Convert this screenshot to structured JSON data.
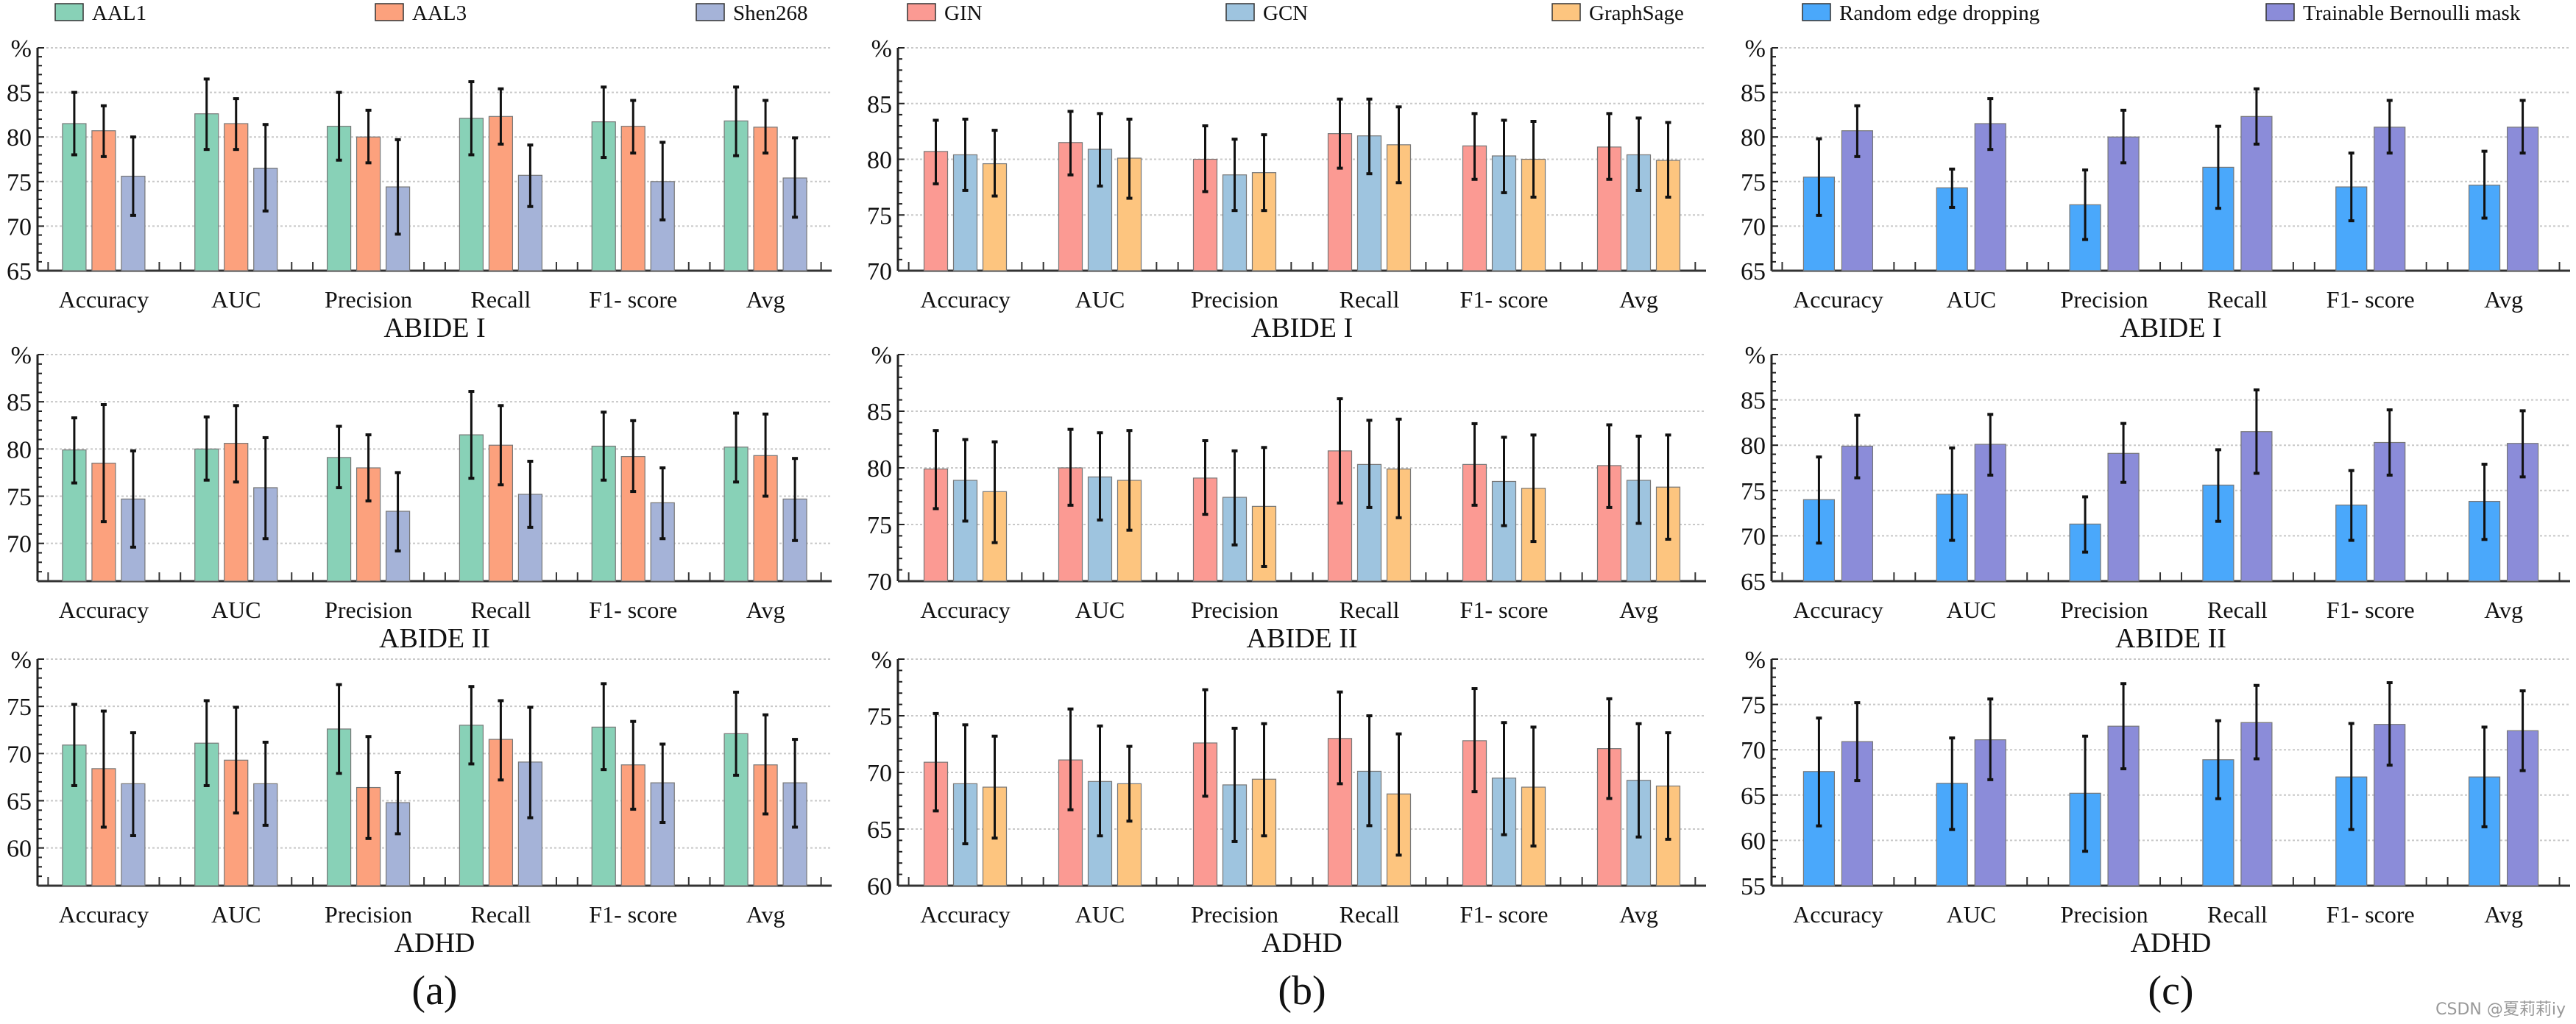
{
  "legends": [
    {
      "items": [
        {
          "name": "AAL1",
          "color": "#88d1b7"
        },
        {
          "name": "AAL3",
          "color": "#fca17d"
        },
        {
          "name": "Shen268",
          "color": "#a5b3d8"
        }
      ]
    },
    {
      "items": [
        {
          "name": "GIN",
          "color": "#fb9a93"
        },
        {
          "name": "GCN",
          "color": "#9ec4df"
        },
        {
          "name": "GraphSage",
          "color": "#fdc57f"
        }
      ]
    },
    {
      "items": [
        {
          "name": "Random edge dropping",
          "color": "#4aa8fb"
        },
        {
          "name": "Trainable Bernoulli mask",
          "color": "#8b8cd9"
        }
      ]
    }
  ],
  "panel_labels": [
    "(a)",
    "(b)",
    "(c)"
  ],
  "watermark": "CSDN @夏莉莉iy",
  "chart_data": [
    {
      "type": "bar",
      "panel": "(a)",
      "title": "ABIDE I",
      "ylabel": "%",
      "ylim": [
        65,
        90
      ],
      "grid": true,
      "categories": [
        "Accuracy",
        "AUC",
        "Precision",
        "Recall",
        "F1- score",
        "Avg"
      ],
      "series": [
        {
          "name": "AAL1",
          "values": [
            81.5,
            82.6,
            81.2,
            82.1,
            81.7,
            81.8
          ],
          "ci": [
            [
              78.0,
              85.0
            ],
            [
              78.6,
              86.5
            ],
            [
              77.4,
              85.0
            ],
            [
              78.0,
              86.2
            ],
            [
              77.7,
              85.6
            ],
            [
              77.9,
              85.6
            ]
          ]
        },
        {
          "name": "AAL3",
          "values": [
            80.7,
            81.5,
            80.0,
            82.3,
            81.2,
            81.1
          ],
          "ci": [
            [
              77.8,
              83.5
            ],
            [
              78.6,
              84.3
            ],
            [
              77.1,
              83.0
            ],
            [
              79.2,
              85.4
            ],
            [
              78.2,
              84.1
            ],
            [
              78.2,
              84.1
            ]
          ]
        },
        {
          "name": "Shen268",
          "values": [
            75.6,
            76.5,
            74.4,
            75.7,
            75.0,
            75.4
          ],
          "ci": [
            [
              71.2,
              80.0
            ],
            [
              71.7,
              81.4
            ],
            [
              69.1,
              79.7
            ],
            [
              72.2,
              79.1
            ],
            [
              70.7,
              79.4
            ],
            [
              71.0,
              79.9
            ]
          ]
        }
      ]
    },
    {
      "type": "bar",
      "panel": "(b)",
      "title": "ABIDE I",
      "ylabel": "%",
      "ylim": [
        70,
        90
      ],
      "grid": true,
      "categories": [
        "Accuracy",
        "AUC",
        "Precision",
        "Recall",
        "F1- score",
        "Avg"
      ],
      "series": [
        {
          "name": "GIN",
          "values": [
            80.7,
            81.5,
            80.0,
            82.3,
            81.2,
            81.1
          ],
          "ci": [
            [
              77.8,
              83.5
            ],
            [
              78.6,
              84.3
            ],
            [
              77.1,
              83.0
            ],
            [
              79.2,
              85.4
            ],
            [
              78.2,
              84.1
            ],
            [
              78.2,
              84.1
            ]
          ]
        },
        {
          "name": "GCN",
          "values": [
            80.4,
            80.9,
            78.6,
            82.1,
            80.3,
            80.4
          ],
          "ci": [
            [
              77.2,
              83.6
            ],
            [
              77.6,
              84.1
            ],
            [
              75.4,
              81.8
            ],
            [
              78.7,
              85.4
            ],
            [
              77.0,
              83.5
            ],
            [
              77.2,
              83.7
            ]
          ]
        },
        {
          "name": "GraphSage",
          "values": [
            79.6,
            80.1,
            78.8,
            81.3,
            80.0,
            79.9
          ],
          "ci": [
            [
              76.7,
              82.6
            ],
            [
              76.5,
              83.6
            ],
            [
              75.4,
              82.2
            ],
            [
              77.9,
              84.7
            ],
            [
              76.6,
              83.4
            ],
            [
              76.6,
              83.3
            ]
          ]
        }
      ]
    },
    {
      "type": "bar",
      "panel": "(c)",
      "title": "ABIDE I",
      "ylabel": "%",
      "ylim": [
        65,
        90
      ],
      "grid": true,
      "categories": [
        "Accuracy",
        "AUC",
        "Precision",
        "Recall",
        "F1- score",
        "Avg"
      ],
      "series": [
        {
          "name": "Random edge dropping",
          "values": [
            75.5,
            74.3,
            72.4,
            76.6,
            74.4,
            74.6
          ],
          "ci": [
            [
              71.2,
              79.8
            ],
            [
              72.1,
              76.4
            ],
            [
              68.5,
              76.3
            ],
            [
              72.0,
              81.2
            ],
            [
              70.6,
              78.2
            ],
            [
              70.9,
              78.4
            ]
          ]
        },
        {
          "name": "Trainable Bernoulli mask",
          "values": [
            80.7,
            81.5,
            80.0,
            82.3,
            81.1,
            81.1
          ],
          "ci": [
            [
              77.8,
              83.5
            ],
            [
              78.6,
              84.3
            ],
            [
              77.1,
              83.0
            ],
            [
              79.2,
              85.4
            ],
            [
              78.2,
              84.1
            ],
            [
              78.2,
              84.1
            ]
          ]
        }
      ]
    },
    {
      "type": "bar",
      "panel": "(a)",
      "title": "ABIDE II",
      "ylabel": "%",
      "ylim": [
        66,
        90
      ],
      "grid": true,
      "categories": [
        "Accuracy",
        "AUC",
        "Precision",
        "Recall",
        "F1- score",
        "Avg"
      ],
      "series": [
        {
          "name": "AAL1",
          "values": [
            79.9,
            80.0,
            79.1,
            81.5,
            80.3,
            80.2
          ],
          "ci": [
            [
              76.4,
              83.3
            ],
            [
              76.7,
              83.4
            ],
            [
              75.9,
              82.4
            ],
            [
              76.9,
              86.1
            ],
            [
              76.7,
              83.9
            ],
            [
              76.5,
              83.8
            ]
          ]
        },
        {
          "name": "AAL3",
          "values": [
            78.5,
            80.6,
            78.0,
            80.4,
            79.2,
            79.3
          ],
          "ci": [
            [
              72.3,
              84.7
            ],
            [
              76.5,
              84.6
            ],
            [
              74.5,
              81.5
            ],
            [
              76.2,
              84.6
            ],
            [
              75.5,
              83.0
            ],
            [
              75.0,
              83.7
            ]
          ]
        },
        {
          "name": "Shen268",
          "values": [
            74.7,
            75.9,
            73.4,
            75.2,
            74.3,
            74.7
          ],
          "ci": [
            [
              69.6,
              79.8
            ],
            [
              70.5,
              81.2
            ],
            [
              69.2,
              77.5
            ],
            [
              71.7,
              78.7
            ],
            [
              70.5,
              78.0
            ],
            [
              70.3,
              79.0
            ]
          ]
        }
      ]
    },
    {
      "type": "bar",
      "panel": "(b)",
      "title": "ABIDE II",
      "ylabel": "%",
      "ylim": [
        70,
        90
      ],
      "grid": true,
      "categories": [
        "Accuracy",
        "AUC",
        "Precision",
        "Recall",
        "F1- score",
        "Avg"
      ],
      "series": [
        {
          "name": "GIN",
          "values": [
            79.9,
            80.0,
            79.1,
            81.5,
            80.3,
            80.2
          ],
          "ci": [
            [
              76.4,
              83.3
            ],
            [
              76.7,
              83.4
            ],
            [
              75.9,
              82.4
            ],
            [
              76.9,
              86.1
            ],
            [
              76.7,
              83.9
            ],
            [
              76.5,
              83.8
            ]
          ]
        },
        {
          "name": "GCN",
          "values": [
            78.9,
            79.2,
            77.4,
            80.3,
            78.8,
            78.9
          ],
          "ci": [
            [
              75.3,
              82.5
            ],
            [
              75.4,
              83.1
            ],
            [
              73.2,
              81.5
            ],
            [
              76.5,
              84.2
            ],
            [
              74.9,
              82.7
            ],
            [
              75.1,
              82.8
            ]
          ]
        },
        {
          "name": "GraphSage",
          "values": [
            77.9,
            78.9,
            76.6,
            79.9,
            78.2,
            78.3
          ],
          "ci": [
            [
              73.4,
              82.3
            ],
            [
              74.5,
              83.3
            ],
            [
              71.3,
              81.8
            ],
            [
              75.6,
              84.3
            ],
            [
              73.5,
              82.9
            ],
            [
              73.7,
              82.9
            ]
          ]
        }
      ]
    },
    {
      "type": "bar",
      "panel": "(c)",
      "title": "ABIDE II",
      "ylabel": "%",
      "ylim": [
        65,
        90
      ],
      "grid": true,
      "categories": [
        "Accuracy",
        "AUC",
        "Precision",
        "Recall",
        "F1- score",
        "Avg"
      ],
      "series": [
        {
          "name": "Random edge dropping",
          "values": [
            74.0,
            74.6,
            71.3,
            75.6,
            73.4,
            73.8
          ],
          "ci": [
            [
              69.2,
              78.7
            ],
            [
              69.5,
              79.7
            ],
            [
              68.2,
              74.3
            ],
            [
              71.6,
              79.5
            ],
            [
              69.5,
              77.2
            ],
            [
              69.6,
              77.9
            ]
          ]
        },
        {
          "name": "Trainable Bernoulli mask",
          "values": [
            79.9,
            80.1,
            79.1,
            81.5,
            80.3,
            80.2
          ],
          "ci": [
            [
              76.4,
              83.3
            ],
            [
              76.7,
              83.4
            ],
            [
              75.9,
              82.4
            ],
            [
              76.9,
              86.1
            ],
            [
              76.7,
              83.9
            ],
            [
              76.5,
              83.8
            ]
          ]
        }
      ]
    },
    {
      "type": "bar",
      "panel": "(a)",
      "title": "ADHD",
      "ylabel": "%",
      "ylim": [
        56,
        80
      ],
      "grid": true,
      "categories": [
        "Accuracy",
        "AUC",
        "Precision",
        "Recall",
        "F1- score",
        "Avg"
      ],
      "series": [
        {
          "name": "AAL1",
          "values": [
            70.9,
            71.1,
            72.6,
            73.0,
            72.8,
            72.1
          ],
          "ci": [
            [
              66.6,
              75.2
            ],
            [
              66.6,
              75.6
            ],
            [
              67.9,
              77.3
            ],
            [
              68.9,
              77.1
            ],
            [
              68.3,
              77.4
            ],
            [
              67.7,
              76.5
            ]
          ]
        },
        {
          "name": "AAL3",
          "values": [
            68.4,
            69.3,
            66.4,
            71.5,
            68.8,
            68.8
          ],
          "ci": [
            [
              62.2,
              74.5
            ],
            [
              63.7,
              74.9
            ],
            [
              61.0,
              71.8
            ],
            [
              67.2,
              75.6
            ],
            [
              64.1,
              73.4
            ],
            [
              63.6,
              74.1
            ]
          ]
        },
        {
          "name": "Shen268",
          "values": [
            66.8,
            66.8,
            64.8,
            69.1,
            66.9,
            66.9
          ],
          "ci": [
            [
              61.3,
              72.2
            ],
            [
              62.4,
              71.2
            ],
            [
              61.5,
              68.0
            ],
            [
              63.2,
              74.9
            ],
            [
              62.7,
              71.0
            ],
            [
              62.2,
              71.5
            ]
          ]
        }
      ]
    },
    {
      "type": "bar",
      "panel": "(b)",
      "title": "ADHD",
      "ylabel": "%",
      "ylim": [
        60,
        80
      ],
      "grid": true,
      "categories": [
        "Accuracy",
        "AUC",
        "Precision",
        "Recall",
        "F1- score",
        "Avg"
      ],
      "series": [
        {
          "name": "GIN",
          "values": [
            70.9,
            71.1,
            72.6,
            73.0,
            72.8,
            72.1
          ],
          "ci": [
            [
              66.6,
              75.2
            ],
            [
              66.7,
              75.6
            ],
            [
              67.9,
              77.3
            ],
            [
              69.0,
              77.1
            ],
            [
              68.3,
              77.4
            ],
            [
              67.7,
              76.5
            ]
          ]
        },
        {
          "name": "GCN",
          "values": [
            69.0,
            69.2,
            68.9,
            70.1,
            69.5,
            69.3
          ],
          "ci": [
            [
              63.7,
              74.2
            ],
            [
              64.4,
              74.1
            ],
            [
              63.9,
              73.9
            ],
            [
              65.3,
              75.0
            ],
            [
              64.5,
              74.4
            ],
            [
              64.3,
              74.3
            ]
          ]
        },
        {
          "name": "GraphSage",
          "values": [
            68.7,
            69.0,
            69.4,
            68.1,
            68.7,
            68.8
          ],
          "ci": [
            [
              64.2,
              73.2
            ],
            [
              65.7,
              72.3
            ],
            [
              64.4,
              74.3
            ],
            [
              62.7,
              73.4
            ],
            [
              63.5,
              74.0
            ],
            [
              64.1,
              73.5
            ]
          ]
        }
      ]
    },
    {
      "type": "bar",
      "panel": "(c)",
      "title": "ADHD",
      "ylabel": "%",
      "ylim": [
        55,
        80
      ],
      "grid": true,
      "categories": [
        "Accuracy",
        "AUC",
        "Precision",
        "Recall",
        "F1- score",
        "Avg"
      ],
      "series": [
        {
          "name": "Random edge dropping",
          "values": [
            67.6,
            66.3,
            65.2,
            68.9,
            67.0,
            67.0
          ],
          "ci": [
            [
              61.6,
              73.5
            ],
            [
              61.2,
              71.3
            ],
            [
              58.8,
              71.5
            ],
            [
              64.6,
              73.2
            ],
            [
              61.2,
              72.9
            ],
            [
              61.5,
              72.5
            ]
          ]
        },
        {
          "name": "Trainable Bernoulli mask",
          "values": [
            70.9,
            71.1,
            72.6,
            73.0,
            72.8,
            72.1
          ],
          "ci": [
            [
              66.6,
              75.2
            ],
            [
              66.7,
              75.6
            ],
            [
              67.9,
              77.3
            ],
            [
              69.0,
              77.1
            ],
            [
              68.3,
              77.4
            ],
            [
              67.7,
              76.5
            ]
          ]
        }
      ]
    }
  ]
}
